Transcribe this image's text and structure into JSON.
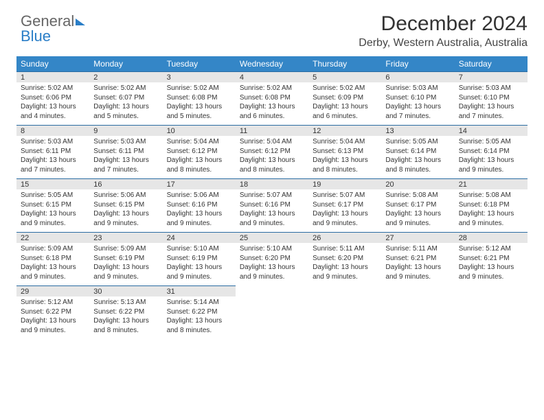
{
  "logo": {
    "part1": "General",
    "part2": "Blue"
  },
  "title": "December 2024",
  "location": "Derby, Western Australia, Australia",
  "weekdays": [
    "Sunday",
    "Monday",
    "Tuesday",
    "Wednesday",
    "Thursday",
    "Friday",
    "Saturday"
  ],
  "colors": {
    "header_bg": "#3486c7",
    "daynum_bg": "#e6e6e6",
    "daynum_border": "#2a6ca2",
    "logo_blue": "#2a7ec7"
  },
  "days": [
    {
      "n": 1,
      "sunrise": "5:02 AM",
      "sunset": "6:06 PM",
      "d_h": 13,
      "d_m": 4
    },
    {
      "n": 2,
      "sunrise": "5:02 AM",
      "sunset": "6:07 PM",
      "d_h": 13,
      "d_m": 5
    },
    {
      "n": 3,
      "sunrise": "5:02 AM",
      "sunset": "6:08 PM",
      "d_h": 13,
      "d_m": 5
    },
    {
      "n": 4,
      "sunrise": "5:02 AM",
      "sunset": "6:08 PM",
      "d_h": 13,
      "d_m": 6
    },
    {
      "n": 5,
      "sunrise": "5:02 AM",
      "sunset": "6:09 PM",
      "d_h": 13,
      "d_m": 6
    },
    {
      "n": 6,
      "sunrise": "5:03 AM",
      "sunset": "6:10 PM",
      "d_h": 13,
      "d_m": 7
    },
    {
      "n": 7,
      "sunrise": "5:03 AM",
      "sunset": "6:10 PM",
      "d_h": 13,
      "d_m": 7
    },
    {
      "n": 8,
      "sunrise": "5:03 AM",
      "sunset": "6:11 PM",
      "d_h": 13,
      "d_m": 7
    },
    {
      "n": 9,
      "sunrise": "5:03 AM",
      "sunset": "6:11 PM",
      "d_h": 13,
      "d_m": 7
    },
    {
      "n": 10,
      "sunrise": "5:04 AM",
      "sunset": "6:12 PM",
      "d_h": 13,
      "d_m": 8
    },
    {
      "n": 11,
      "sunrise": "5:04 AM",
      "sunset": "6:12 PM",
      "d_h": 13,
      "d_m": 8
    },
    {
      "n": 12,
      "sunrise": "5:04 AM",
      "sunset": "6:13 PM",
      "d_h": 13,
      "d_m": 8
    },
    {
      "n": 13,
      "sunrise": "5:05 AM",
      "sunset": "6:14 PM",
      "d_h": 13,
      "d_m": 8
    },
    {
      "n": 14,
      "sunrise": "5:05 AM",
      "sunset": "6:14 PM",
      "d_h": 13,
      "d_m": 9
    },
    {
      "n": 15,
      "sunrise": "5:05 AM",
      "sunset": "6:15 PM",
      "d_h": 13,
      "d_m": 9
    },
    {
      "n": 16,
      "sunrise": "5:06 AM",
      "sunset": "6:15 PM",
      "d_h": 13,
      "d_m": 9
    },
    {
      "n": 17,
      "sunrise": "5:06 AM",
      "sunset": "6:16 PM",
      "d_h": 13,
      "d_m": 9
    },
    {
      "n": 18,
      "sunrise": "5:07 AM",
      "sunset": "6:16 PM",
      "d_h": 13,
      "d_m": 9
    },
    {
      "n": 19,
      "sunrise": "5:07 AM",
      "sunset": "6:17 PM",
      "d_h": 13,
      "d_m": 9
    },
    {
      "n": 20,
      "sunrise": "5:08 AM",
      "sunset": "6:17 PM",
      "d_h": 13,
      "d_m": 9
    },
    {
      "n": 21,
      "sunrise": "5:08 AM",
      "sunset": "6:18 PM",
      "d_h": 13,
      "d_m": 9
    },
    {
      "n": 22,
      "sunrise": "5:09 AM",
      "sunset": "6:18 PM",
      "d_h": 13,
      "d_m": 9
    },
    {
      "n": 23,
      "sunrise": "5:09 AM",
      "sunset": "6:19 PM",
      "d_h": 13,
      "d_m": 9
    },
    {
      "n": 24,
      "sunrise": "5:10 AM",
      "sunset": "6:19 PM",
      "d_h": 13,
      "d_m": 9
    },
    {
      "n": 25,
      "sunrise": "5:10 AM",
      "sunset": "6:20 PM",
      "d_h": 13,
      "d_m": 9
    },
    {
      "n": 26,
      "sunrise": "5:11 AM",
      "sunset": "6:20 PM",
      "d_h": 13,
      "d_m": 9
    },
    {
      "n": 27,
      "sunrise": "5:11 AM",
      "sunset": "6:21 PM",
      "d_h": 13,
      "d_m": 9
    },
    {
      "n": 28,
      "sunrise": "5:12 AM",
      "sunset": "6:21 PM",
      "d_h": 13,
      "d_m": 9
    },
    {
      "n": 29,
      "sunrise": "5:12 AM",
      "sunset": "6:22 PM",
      "d_h": 13,
      "d_m": 9
    },
    {
      "n": 30,
      "sunrise": "5:13 AM",
      "sunset": "6:22 PM",
      "d_h": 13,
      "d_m": 8
    },
    {
      "n": 31,
      "sunrise": "5:14 AM",
      "sunset": "6:22 PM",
      "d_h": 13,
      "d_m": 8
    }
  ],
  "labels": {
    "sunrise": "Sunrise:",
    "sunset": "Sunset:",
    "daylight": "Daylight:",
    "hours_word": "hours",
    "and_word": "and",
    "minutes_word": "minutes."
  },
  "start_weekday": 0
}
